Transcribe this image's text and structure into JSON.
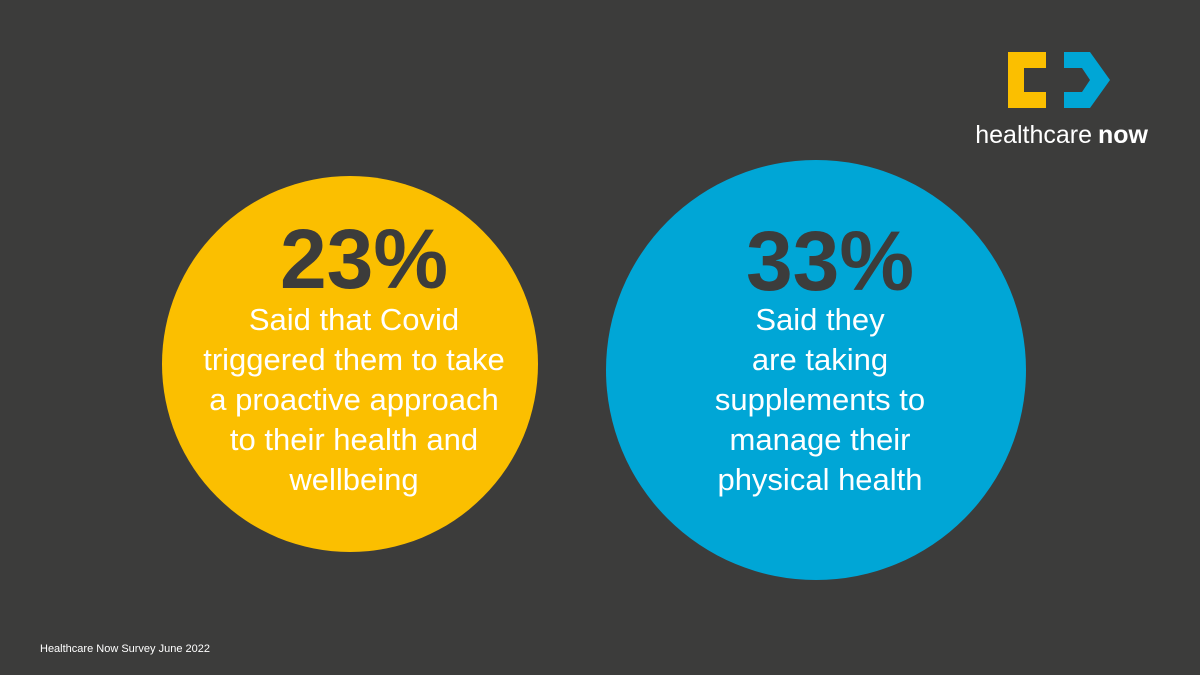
{
  "logo": {
    "text": "healthcare",
    "bold_text": "now"
  },
  "stats": [
    {
      "figure": "23%",
      "lines": [
        "Said that Covid",
        "triggered them to take",
        "a proactive approach",
        "to their health and",
        "wellbeing"
      ],
      "color": "#fbbf00"
    },
    {
      "figure": "33%",
      "lines": [
        "Said they",
        "are taking",
        "supplements to",
        "manage their",
        "physical health"
      ],
      "color": "#00a6d6"
    }
  ],
  "footer": "Healthcare Now Survey June 2022"
}
